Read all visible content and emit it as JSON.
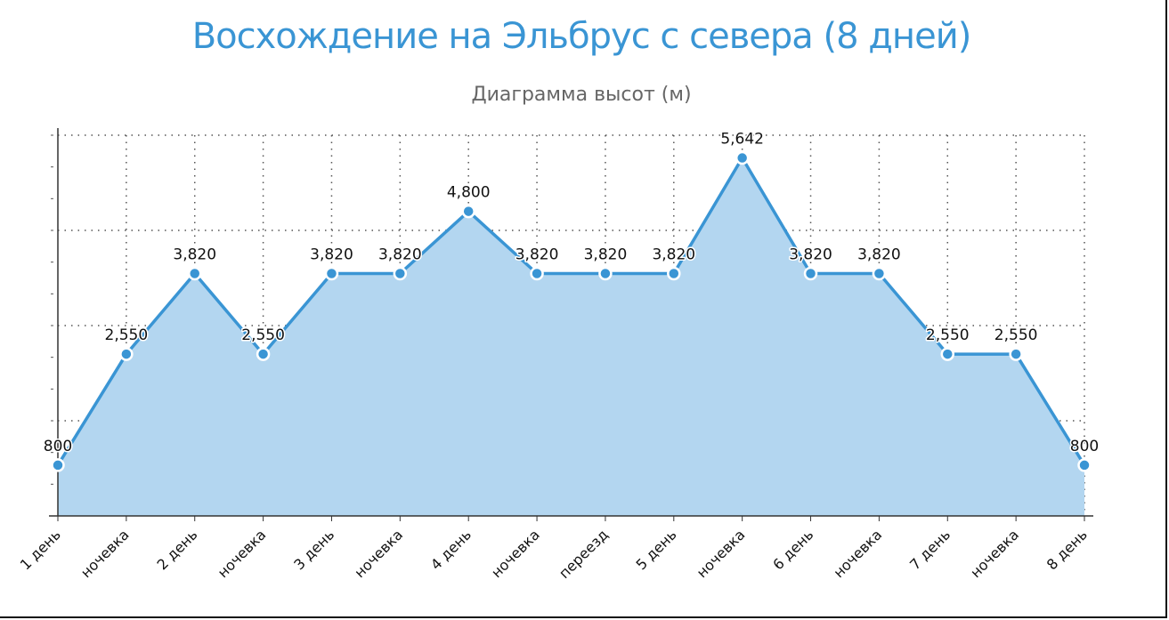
{
  "chart_data": {
    "type": "area",
    "title": "Восхождение на Эльбрус с севера (8 дней)",
    "subtitle": "Диаграмма высот (м)",
    "categories": [
      "1 день",
      "ночевка",
      "2 день",
      "ночевка",
      "3 день",
      "ночевка",
      "4 день",
      "ночевка",
      "переезд",
      "5 день",
      "ночевка",
      "6 день",
      "ночевка",
      "7 день",
      "ночевка",
      "8 день"
    ],
    "series": [
      {
        "values": [
          800,
          2550,
          3820,
          2550,
          3820,
          3820,
          4800,
          3820,
          3820,
          3820,
          5642,
          3820,
          3820,
          2550,
          2550,
          800
        ],
        "data_labels": [
          "800",
          "2,550",
          "3,820",
          "2,550",
          "3,820",
          "3,820",
          "4,800",
          "3,820",
          "3,820",
          "3,820",
          "5,642",
          "3,820",
          "3,820",
          "2,550",
          "2,550",
          "800"
        ]
      }
    ],
    "ylim": [
      0,
      6000
    ],
    "ytick_step": 1500,
    "y_tick_labels_visible": false,
    "grid": "dotted",
    "colors": {
      "line": "#3a95d4",
      "fill": "#b3d6f0",
      "title": "#3a95d4",
      "subtitle": "#666666",
      "grid": "#555555"
    }
  }
}
